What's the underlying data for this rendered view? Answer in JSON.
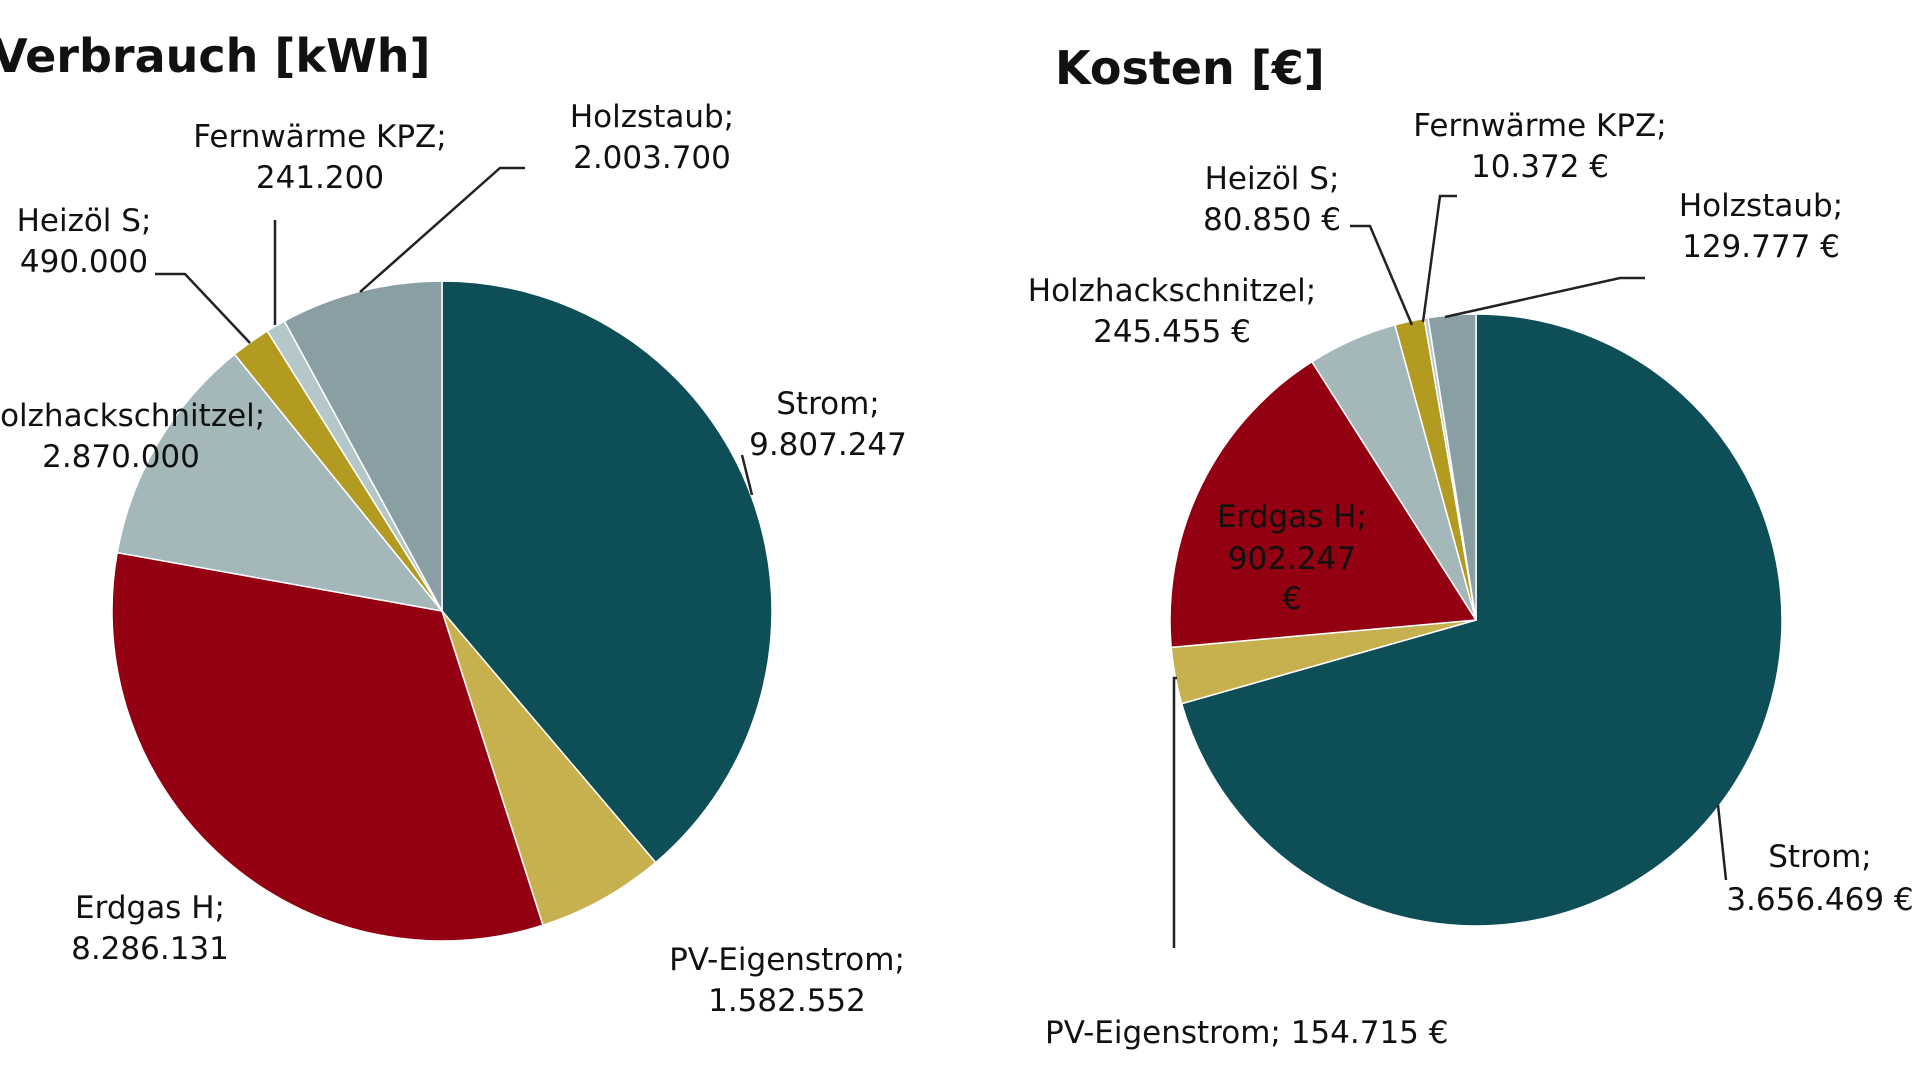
{
  "chart_data": [
    {
      "type": "pie",
      "title": "Verbrauch [kWh]",
      "slices": [
        {
          "name": "Strom",
          "value": 9807247,
          "label": "Strom;",
          "value_label": "9.807.247",
          "color": "#0e4e57"
        },
        {
          "name": "PV-Eigenstrom",
          "value": 1582552,
          "label": "PV-Eigenstrom;",
          "value_label": "1.582.552",
          "color": "#c6b14e"
        },
        {
          "name": "Erdgas H",
          "value": 8286131,
          "label": "Erdgas H;",
          "value_label": "8.286.131",
          "color": "#930011"
        },
        {
          "name": "Holzhackschnitzel",
          "value": 2870000,
          "label": "Holzhackschnitzel;",
          "value_label": "2.870.000",
          "color": "#a4b8b9"
        },
        {
          "name": "Heizöl S",
          "value": 490000,
          "label": "Heizöl S;",
          "value_label": "490.000",
          "color": "#b39b21"
        },
        {
          "name": "Fernwärme KPZ",
          "value": 241200,
          "label": "Fernwärme KPZ;",
          "value_label": "241.200",
          "color": "#b4c7c9"
        },
        {
          "name": "Holzstaub",
          "value": 2003700,
          "label": "Holzstaub;",
          "value_label": "2.003.700",
          "color": "#8a9fa3"
        }
      ]
    },
    {
      "type": "pie",
      "title": "Kosten [€]",
      "slices": [
        {
          "name": "Strom",
          "value": 3656469,
          "label": "Strom;",
          "value_label": "3.656.469 €",
          "color": "#0e4e57"
        },
        {
          "name": "PV-Eigenstrom",
          "value": 154715,
          "label": "PV-Eigenstrom; 154.715 €",
          "color": "#c6b14e"
        },
        {
          "name": "Erdgas H",
          "value": 902247,
          "label": "Erdgas H;",
          "value_label": "902.247",
          "unit_label": "€",
          "color": "#930011"
        },
        {
          "name": "Holzhackschnitzel",
          "value": 245455,
          "label": "Holzhackschnitzel;",
          "value_label": "245.455 €",
          "color": "#a4b8b9"
        },
        {
          "name": "Heizöl S",
          "value": 80850,
          "label": "Heizöl S;",
          "value_label": "80.850 €",
          "color": "#b39b21"
        },
        {
          "name": "Fernwärme KPZ",
          "value": 10372,
          "label": "Fernwärme KPZ;",
          "value_label": "10.372 €",
          "color": "#b4c7c9"
        },
        {
          "name": "Holzstaub",
          "value": 129777,
          "label": "Holzstaub;",
          "value_label": "129.777 €",
          "color": "#8a9fa3"
        }
      ]
    }
  ]
}
